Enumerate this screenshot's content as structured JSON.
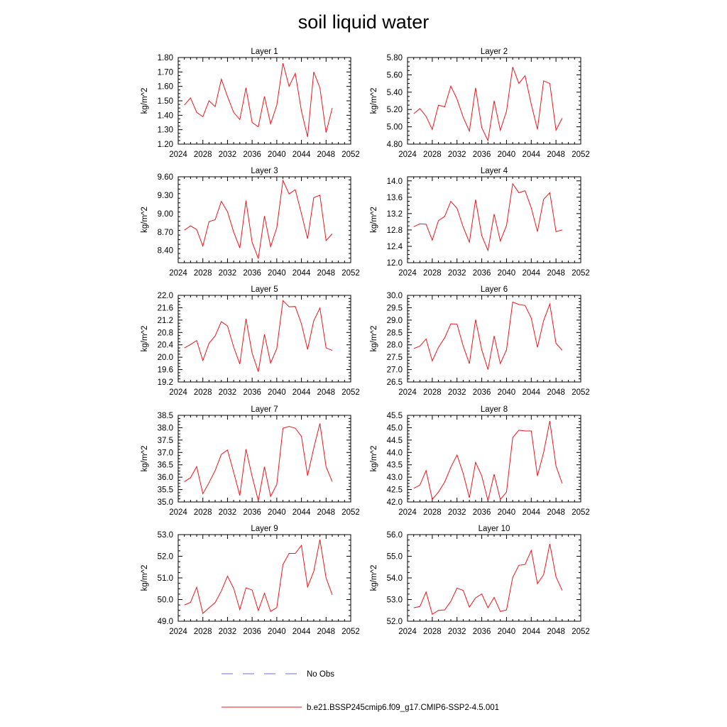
{
  "title": "soil liquid water",
  "legend": {
    "placement": "bottom-center",
    "entries": [
      {
        "label": "No Obs",
        "color": "#6f6fd8",
        "style": "dashed"
      },
      {
        "label": "b.e21.BSSP245cmip6.f09_g17.CMIP6-SSP2-4.5.001",
        "color": "#e8181e",
        "style": "solid"
      }
    ]
  },
  "chart_data": [
    {
      "type": "line",
      "title": "Layer 1",
      "ylabel": "kg/m^2",
      "xlim": [
        2024,
        2052
      ],
      "ylim": [
        1.2,
        1.8
      ],
      "xticks": [
        2024,
        2028,
        2032,
        2036,
        2040,
        2044,
        2048,
        2052
      ],
      "yticks": [
        1.2,
        1.3,
        1.4,
        1.5,
        1.6,
        1.7,
        1.8
      ],
      "ytick_labels": [
        "1.20",
        "1.30",
        "1.40",
        "1.50",
        "1.60",
        "1.70",
        "1.80"
      ],
      "series": [
        {
          "name": "b.e21.BSSP245cmip6.f09_g17.CMIP6-SSP2-4.5.001",
          "color": "#e8181e",
          "x": [
            2025,
            2026,
            2027,
            2028,
            2029,
            2030,
            2031,
            2032,
            2033,
            2034,
            2035,
            2036,
            2037,
            2038,
            2039,
            2040,
            2041,
            2042,
            2043,
            2044,
            2045,
            2046,
            2047,
            2048,
            2049
          ],
          "y": [
            1.47,
            1.52,
            1.42,
            1.39,
            1.5,
            1.46,
            1.65,
            1.53,
            1.42,
            1.37,
            1.59,
            1.35,
            1.32,
            1.53,
            1.34,
            1.47,
            1.76,
            1.6,
            1.69,
            1.43,
            1.25,
            1.7,
            1.59,
            1.28,
            1.45
          ]
        }
      ]
    },
    {
      "type": "line",
      "title": "Layer 2",
      "ylabel": "kg/m^2",
      "xlim": [
        2024,
        2052
      ],
      "ylim": [
        4.8,
        5.8
      ],
      "xticks": [
        2024,
        2028,
        2032,
        2036,
        2040,
        2044,
        2048,
        2052
      ],
      "yticks": [
        4.8,
        5.0,
        5.2,
        5.4,
        5.6,
        5.8
      ],
      "ytick_labels": [
        "4.80",
        "5.00",
        "5.20",
        "5.40",
        "5.60",
        "5.80"
      ],
      "series": [
        {
          "name": "b.e21.BSSP245cmip6.f09_g17.CMIP6-SSP2-4.5.001",
          "color": "#e8181e",
          "x": [
            2025,
            2026,
            2027,
            2028,
            2029,
            2030,
            2031,
            2032,
            2033,
            2034,
            2035,
            2036,
            2037,
            2038,
            2039,
            2040,
            2041,
            2042,
            2043,
            2044,
            2045,
            2046,
            2047,
            2048,
            2049
          ],
          "y": [
            5.15,
            5.21,
            5.12,
            4.97,
            5.25,
            5.23,
            5.47,
            5.32,
            5.11,
            4.95,
            5.45,
            4.99,
            4.84,
            5.3,
            4.96,
            5.18,
            5.69,
            5.5,
            5.59,
            5.26,
            4.97,
            5.53,
            5.5,
            4.96,
            5.1
          ]
        }
      ]
    },
    {
      "type": "line",
      "title": "Layer 3",
      "ylabel": "kg/m^2",
      "xlim": [
        2024,
        2052
      ],
      "ylim": [
        8.2,
        9.6
      ],
      "xticks": [
        2024,
        2028,
        2032,
        2036,
        2040,
        2044,
        2048,
        2052
      ],
      "yticks": [
        8.4,
        8.7,
        9.0,
        9.3,
        9.6
      ],
      "ytick_labels": [
        "8.40",
        "8.70",
        "9.00",
        "9.30",
        "9.60"
      ],
      "series": [
        {
          "name": "b.e21.BSSP245cmip6.f09_g17.CMIP6-SSP2-4.5.001",
          "color": "#e8181e",
          "x": [
            2025,
            2026,
            2027,
            2028,
            2029,
            2030,
            2031,
            2032,
            2033,
            2034,
            2035,
            2036,
            2037,
            2038,
            2039,
            2040,
            2041,
            2042,
            2043,
            2044,
            2045,
            2046,
            2047,
            2048,
            2049
          ],
          "y": [
            8.73,
            8.8,
            8.74,
            8.47,
            8.87,
            8.9,
            9.2,
            9.03,
            8.7,
            8.44,
            9.21,
            8.53,
            8.27,
            8.96,
            8.46,
            8.77,
            9.54,
            9.32,
            9.39,
            9.0,
            8.59,
            9.26,
            9.3,
            8.56,
            8.67
          ]
        }
      ]
    },
    {
      "type": "line",
      "title": "Layer 4",
      "ylabel": "kg/m^2",
      "xlim": [
        2024,
        2052
      ],
      "ylim": [
        12.0,
        14.1
      ],
      "xticks": [
        2024,
        2028,
        2032,
        2036,
        2040,
        2044,
        2048,
        2052
      ],
      "yticks": [
        12.0,
        12.4,
        12.8,
        13.2,
        13.6,
        14.0
      ],
      "ytick_labels": [
        "12.0",
        "12.4",
        "12.8",
        "13.2",
        "13.6",
        "14.0"
      ],
      "series": [
        {
          "name": "b.e21.BSSP245cmip6.f09_g17.CMIP6-SSP2-4.5.001",
          "color": "#e8181e",
          "x": [
            2025,
            2026,
            2027,
            2028,
            2029,
            2030,
            2031,
            2032,
            2033,
            2034,
            2035,
            2036,
            2037,
            2038,
            2039,
            2040,
            2041,
            2042,
            2043,
            2044,
            2045,
            2046,
            2047,
            2048,
            2049
          ],
          "y": [
            12.88,
            12.95,
            12.94,
            12.55,
            13.03,
            13.13,
            13.5,
            13.33,
            12.87,
            12.5,
            13.54,
            12.66,
            12.3,
            13.19,
            12.53,
            12.91,
            13.93,
            13.71,
            13.76,
            13.34,
            12.76,
            13.55,
            13.71,
            12.76,
            12.8
          ]
        }
      ]
    },
    {
      "type": "line",
      "title": "Layer 5",
      "ylabel": "kg/m^2",
      "xlim": [
        2024,
        2052
      ],
      "ylim": [
        19.2,
        22.0
      ],
      "xticks": [
        2024,
        2028,
        2032,
        2036,
        2040,
        2044,
        2048,
        2052
      ],
      "yticks": [
        19.2,
        19.6,
        20.0,
        20.4,
        20.8,
        21.2,
        21.6,
        22.0
      ],
      "ytick_labels": [
        "19.2",
        "19.6",
        "20.0",
        "20.4",
        "20.8",
        "21.2",
        "21.6",
        "22.0"
      ],
      "series": [
        {
          "name": "b.e21.BSSP245cmip6.f09_g17.CMIP6-SSP2-4.5.001",
          "color": "#e8181e",
          "x": [
            2025,
            2026,
            2027,
            2028,
            2029,
            2030,
            2031,
            2032,
            2033,
            2034,
            2035,
            2036,
            2037,
            2038,
            2039,
            2040,
            2041,
            2042,
            2043,
            2044,
            2045,
            2046,
            2047,
            2048,
            2049
          ],
          "y": [
            20.3,
            20.41,
            20.54,
            19.89,
            20.45,
            20.69,
            21.15,
            21.01,
            20.33,
            19.78,
            21.24,
            20.13,
            19.53,
            20.74,
            19.81,
            20.28,
            21.83,
            21.63,
            21.64,
            21.08,
            20.25,
            21.18,
            21.59,
            20.3,
            20.22
          ]
        }
      ]
    },
    {
      "type": "line",
      "title": "Layer 6",
      "ylabel": "kg/m^2",
      "xlim": [
        2024,
        2052
      ],
      "ylim": [
        26.5,
        30.0
      ],
      "xticks": [
        2024,
        2028,
        2032,
        2036,
        2040,
        2044,
        2048,
        2052
      ],
      "yticks": [
        26.5,
        27.0,
        27.5,
        28.0,
        28.5,
        29.0,
        29.5,
        30.0
      ],
      "ytick_labels": [
        "26.5",
        "27.0",
        "27.5",
        "28.0",
        "28.5",
        "29.0",
        "29.5",
        "30.0"
      ],
      "series": [
        {
          "name": "b.e21.BSSP245cmip6.f09_g17.CMIP6-SSP2-4.5.001",
          "color": "#e8181e",
          "x": [
            2025,
            2026,
            2027,
            2028,
            2029,
            2030,
            2031,
            2032,
            2033,
            2034,
            2035,
            2036,
            2037,
            2038,
            2039,
            2040,
            2041,
            2042,
            2043,
            2044,
            2045,
            2046,
            2047,
            2048,
            2049
          ],
          "y": [
            27.85,
            27.95,
            28.24,
            27.35,
            27.9,
            28.28,
            28.85,
            28.84,
            27.95,
            27.24,
            29.02,
            27.8,
            27.0,
            28.36,
            27.24,
            27.8,
            29.73,
            29.63,
            29.59,
            29.08,
            27.9,
            28.98,
            29.65,
            28.06,
            27.78
          ]
        }
      ]
    },
    {
      "type": "line",
      "title": "Layer 7",
      "ylabel": "kg/m^2",
      "xlim": [
        2024,
        2052
      ],
      "ylim": [
        35.0,
        38.5
      ],
      "xticks": [
        2024,
        2028,
        2032,
        2036,
        2040,
        2044,
        2048,
        2052
      ],
      "yticks": [
        35.0,
        35.5,
        36.0,
        36.5,
        37.0,
        37.5,
        38.0,
        38.5
      ],
      "ytick_labels": [
        "35.0",
        "35.5",
        "36.0",
        "36.5",
        "37.0",
        "37.5",
        "38.0",
        "38.5"
      ],
      "series": [
        {
          "name": "b.e21.BSSP245cmip6.f09_g17.CMIP6-SSP2-4.5.001",
          "color": "#e8181e",
          "x": [
            2025,
            2026,
            2027,
            2028,
            2029,
            2030,
            2031,
            2032,
            2033,
            2034,
            2035,
            2036,
            2037,
            2038,
            2039,
            2040,
            2041,
            2042,
            2043,
            2044,
            2045,
            2046,
            2047,
            2048,
            2049
          ],
          "y": [
            35.82,
            35.98,
            36.43,
            35.33,
            35.78,
            36.27,
            36.92,
            37.1,
            36.2,
            35.26,
            37.13,
            36.03,
            35.05,
            36.42,
            35.22,
            35.71,
            37.98,
            38.05,
            37.98,
            37.65,
            36.06,
            37.18,
            38.17,
            36.42,
            35.82
          ]
        }
      ]
    },
    {
      "type": "line",
      "title": "Layer 8",
      "ylabel": "kg/m^2",
      "xlim": [
        2024,
        2052
      ],
      "ylim": [
        42.0,
        45.5
      ],
      "xticks": [
        2024,
        2028,
        2032,
        2036,
        2040,
        2044,
        2048,
        2052
      ],
      "yticks": [
        42.0,
        42.5,
        43.0,
        43.5,
        44.0,
        44.5,
        45.0,
        45.5
      ],
      "ytick_labels": [
        "42.0",
        "42.5",
        "43.0",
        "43.5",
        "44.0",
        "44.5",
        "45.0",
        "45.5"
      ],
      "series": [
        {
          "name": "b.e21.BSSP245cmip6.f09_g17.CMIP6-SSP2-4.5.001",
          "color": "#e8181e",
          "x": [
            2025,
            2026,
            2027,
            2028,
            2029,
            2030,
            2031,
            2032,
            2033,
            2034,
            2035,
            2036,
            2037,
            2038,
            2039,
            2040,
            2041,
            2042,
            2043,
            2044,
            2045,
            2046,
            2047,
            2048,
            2049
          ],
          "y": [
            42.55,
            42.68,
            43.27,
            42.1,
            42.4,
            42.8,
            43.4,
            43.9,
            43.15,
            42.17,
            43.6,
            43.05,
            42.05,
            43.12,
            42.1,
            42.4,
            44.6,
            44.9,
            44.87,
            44.87,
            43.05,
            44.0,
            45.27,
            43.45,
            42.75
          ]
        }
      ]
    },
    {
      "type": "line",
      "title": "Layer 9",
      "ylabel": "kg/m^2",
      "xlim": [
        2024,
        2052
      ],
      "ylim": [
        49.0,
        53.0
      ],
      "xticks": [
        2024,
        2028,
        2032,
        2036,
        2040,
        2044,
        2048,
        2052
      ],
      "yticks": [
        49.0,
        50.0,
        51.0,
        52.0,
        53.0
      ],
      "ytick_labels": [
        "49.0",
        "50.0",
        "51.0",
        "52.0",
        "53.0"
      ],
      "series": [
        {
          "name": "b.e21.BSSP245cmip6.f09_g17.CMIP6-SSP2-4.5.001",
          "color": "#e8181e",
          "x": [
            2025,
            2026,
            2027,
            2028,
            2029,
            2030,
            2031,
            2032,
            2033,
            2034,
            2035,
            2036,
            2037,
            2038,
            2039,
            2040,
            2041,
            2042,
            2043,
            2044,
            2045,
            2046,
            2047,
            2048,
            2049
          ],
          "y": [
            49.75,
            49.87,
            50.57,
            49.36,
            49.62,
            49.86,
            50.4,
            51.08,
            50.52,
            49.54,
            50.54,
            50.44,
            49.49,
            50.29,
            49.45,
            49.63,
            51.62,
            52.13,
            52.13,
            52.5,
            50.58,
            51.3,
            52.77,
            51.0,
            50.22
          ]
        }
      ]
    },
    {
      "type": "line",
      "title": "Layer 10",
      "ylabel": "kg/m^2",
      "xlim": [
        2024,
        2052
      ],
      "ylim": [
        52.0,
        56.0
      ],
      "xticks": [
        2024,
        2028,
        2032,
        2036,
        2040,
        2044,
        2048,
        2052
      ],
      "yticks": [
        52.0,
        53.0,
        54.0,
        55.0,
        56.0
      ],
      "ytick_labels": [
        "52.0",
        "53.0",
        "54.0",
        "55.0",
        "56.0"
      ],
      "series": [
        {
          "name": "b.e21.BSSP245cmip6.f09_g17.CMIP6-SSP2-4.5.001",
          "color": "#e8181e",
          "x": [
            2025,
            2026,
            2027,
            2028,
            2029,
            2030,
            2031,
            2032,
            2033,
            2034,
            2035,
            2036,
            2037,
            2038,
            2039,
            2040,
            2041,
            2042,
            2043,
            2044,
            2045,
            2046,
            2047,
            2048,
            2049
          ],
          "y": [
            52.62,
            52.68,
            53.35,
            52.32,
            52.5,
            52.52,
            52.92,
            53.53,
            53.42,
            52.65,
            53.08,
            53.26,
            52.62,
            53.1,
            52.45,
            52.52,
            54.02,
            54.58,
            54.62,
            55.27,
            53.73,
            54.15,
            55.57,
            54.05,
            53.42
          ]
        }
      ]
    }
  ]
}
